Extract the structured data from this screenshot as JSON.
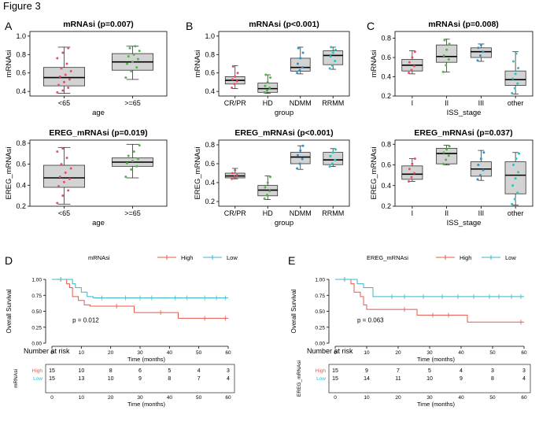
{
  "figure_title": "Figure 3",
  "colors": {
    "high": "#e8584b",
    "low": "#3bb6cc",
    "box_fill": "#d3d3d3",
    "g_a": "#e8506a",
    "g_b": "#53b34a",
    "g_c": "#2b90cf",
    "g_d": "#25c3c6"
  },
  "panels": {
    "A": "A",
    "B": "B",
    "C": "C",
    "D": "D",
    "E": "E"
  },
  "chart_data": [
    {
      "id": "A-top",
      "type": "box",
      "title": "mRNAsi (p=0.007)",
      "xlabel": "age",
      "ylabel": "mRNAsi",
      "ylim": [
        0.35,
        1.05
      ],
      "yticks": [
        "0.4",
        "0.6",
        "0.8",
        "1.0"
      ],
      "ytick_values": [
        0.4,
        0.6,
        0.8,
        1.0
      ],
      "categories": [
        "<65",
        ">=65"
      ],
      "point_colors": [
        "g_a",
        "g_b"
      ],
      "boxes": [
        {
          "min": 0.38,
          "q1": 0.46,
          "median": 0.55,
          "q3": 0.66,
          "max": 0.88,
          "points": [
            0.39,
            0.41,
            0.44,
            0.47,
            0.5,
            0.53,
            0.56,
            0.58,
            0.62,
            0.65,
            0.7,
            0.76,
            0.82,
            0.87
          ]
        },
        {
          "min": 0.53,
          "q1": 0.63,
          "median": 0.72,
          "q3": 0.81,
          "max": 0.89,
          "points": [
            0.55,
            0.62,
            0.66,
            0.7,
            0.72,
            0.75,
            0.78,
            0.8,
            0.84,
            0.87,
            0.89
          ]
        }
      ]
    },
    {
      "id": "B-top",
      "type": "box",
      "title": "mRNAsi (p<0.001)",
      "xlabel": "group",
      "ylabel": "mRNAsi",
      "ylim": [
        0.35,
        1.05
      ],
      "yticks": [
        "0.4",
        "0.6",
        "0.8",
        "1.0"
      ],
      "ytick_values": [
        0.4,
        0.6,
        0.8,
        1.0
      ],
      "categories": [
        "CR/PR",
        "HD",
        "NDMM",
        "RRMM"
      ],
      "point_colors": [
        "g_a",
        "g_b",
        "g_c",
        "g_d"
      ],
      "boxes": [
        {
          "min": 0.43,
          "q1": 0.48,
          "median": 0.52,
          "q3": 0.56,
          "max": 0.68,
          "points": [
            0.44,
            0.48,
            0.51,
            0.53,
            0.56,
            0.6,
            0.67
          ]
        },
        {
          "min": 0.38,
          "q1": 0.39,
          "median": 0.43,
          "q3": 0.49,
          "max": 0.58,
          "points": [
            0.39,
            0.41,
            0.44,
            0.46,
            0.5,
            0.55,
            0.58
          ]
        },
        {
          "min": 0.59,
          "q1": 0.62,
          "median": 0.66,
          "q3": 0.76,
          "max": 0.88,
          "points": [
            0.6,
            0.63,
            0.66,
            0.7,
            0.76,
            0.82,
            0.87
          ]
        },
        {
          "min": 0.64,
          "q1": 0.69,
          "median": 0.79,
          "q3": 0.84,
          "max": 0.88,
          "points": [
            0.65,
            0.68,
            0.73,
            0.78,
            0.82,
            0.85,
            0.88
          ]
        }
      ]
    },
    {
      "id": "C-top",
      "type": "box",
      "title": "mRNAsi (p=0.008)",
      "xlabel": "ISS_stage",
      "ylabel": "mRNAsi",
      "ylim": [
        0.2,
        0.87
      ],
      "yticks": [
        "0.2",
        "0.4",
        "0.6",
        "0.8"
      ],
      "ytick_values": [
        0.2,
        0.4,
        0.6,
        0.8
      ],
      "categories": [
        "I",
        "II",
        "III",
        "other"
      ],
      "point_colors": [
        "g_a",
        "g_b",
        "g_c",
        "g_d"
      ],
      "boxes": [
        {
          "min": 0.43,
          "q1": 0.46,
          "median": 0.52,
          "q3": 0.58,
          "max": 0.67,
          "points": [
            0.44,
            0.47,
            0.51,
            0.55,
            0.6,
            0.66
          ]
        },
        {
          "min": 0.45,
          "q1": 0.55,
          "median": 0.61,
          "q3": 0.73,
          "max": 0.79,
          "points": [
            0.45,
            0.52,
            0.58,
            0.62,
            0.68,
            0.74,
            0.78
          ]
        },
        {
          "min": 0.56,
          "q1": 0.6,
          "median": 0.66,
          "q3": 0.7,
          "max": 0.74,
          "points": [
            0.57,
            0.62,
            0.66,
            0.7,
            0.73
          ]
        },
        {
          "min": 0.22,
          "q1": 0.31,
          "median": 0.37,
          "q3": 0.46,
          "max": 0.66,
          "points": [
            0.23,
            0.28,
            0.33,
            0.38,
            0.43,
            0.49,
            0.56,
            0.64
          ]
        }
      ]
    },
    {
      "id": "A-bottom",
      "type": "box",
      "title": "EREG_mRNAsi (p=0.019)",
      "xlabel": "age",
      "ylabel": "EREG_mRNAsi",
      "ylim": [
        0.2,
        0.83
      ],
      "yticks": [
        "0.2",
        "0.4",
        "0.6",
        "0.8"
      ],
      "ytick_values": [
        0.2,
        0.4,
        0.6,
        0.8
      ],
      "categories": [
        "<65",
        ">=65"
      ],
      "point_colors": [
        "g_a",
        "g_b"
      ],
      "boxes": [
        {
          "min": 0.22,
          "q1": 0.38,
          "median": 0.47,
          "q3": 0.59,
          "max": 0.76,
          "points": [
            0.23,
            0.3,
            0.35,
            0.39,
            0.43,
            0.46,
            0.48,
            0.52,
            0.56,
            0.6,
            0.66,
            0.72,
            0.75
          ]
        },
        {
          "min": 0.47,
          "q1": 0.58,
          "median": 0.62,
          "q3": 0.66,
          "max": 0.79,
          "points": [
            0.48,
            0.55,
            0.58,
            0.61,
            0.63,
            0.65,
            0.68,
            0.72,
            0.78
          ]
        }
      ]
    },
    {
      "id": "B-bottom",
      "type": "box",
      "title": "EREG_mRNAsi (p<0.001)",
      "xlabel": "group",
      "ylabel": "EREG_mRNAsi",
      "ylim": [
        0.15,
        0.85
      ],
      "yticks": [
        "0.2",
        "0.4",
        "0.6",
        "0.8"
      ],
      "ytick_values": [
        0.2,
        0.4,
        0.6,
        0.8
      ],
      "categories": [
        "CR/PR",
        "HD",
        "NDMM",
        "RRMM"
      ],
      "point_colors": [
        "g_a",
        "g_b",
        "g_c",
        "g_d"
      ],
      "boxes": [
        {
          "min": 0.44,
          "q1": 0.45,
          "median": 0.47,
          "q3": 0.5,
          "max": 0.55,
          "points": [
            0.44,
            0.46,
            0.48,
            0.5,
            0.53
          ]
        },
        {
          "min": 0.22,
          "q1": 0.26,
          "median": 0.32,
          "q3": 0.37,
          "max": 0.47,
          "points": [
            0.23,
            0.27,
            0.31,
            0.35,
            0.4,
            0.46
          ]
        },
        {
          "min": 0.54,
          "q1": 0.6,
          "median": 0.67,
          "q3": 0.72,
          "max": 0.79,
          "points": [
            0.55,
            0.6,
            0.65,
            0.69,
            0.74,
            0.79
          ]
        },
        {
          "min": 0.57,
          "q1": 0.59,
          "median": 0.64,
          "q3": 0.72,
          "max": 0.76,
          "points": [
            0.57,
            0.6,
            0.64,
            0.68,
            0.72,
            0.75
          ]
        }
      ]
    },
    {
      "id": "C-bottom",
      "type": "box",
      "title": "EREG_mRNAsi (p=0.037)",
      "xlabel": "ISS_stage",
      "ylabel": "EREG_mRNAsi",
      "ylim": [
        0.2,
        0.84
      ],
      "yticks": [
        "0.2",
        "0.4",
        "0.6",
        "0.8"
      ],
      "ytick_values": [
        0.2,
        0.4,
        0.6,
        0.8
      ],
      "categories": [
        "I",
        "II",
        "III",
        "other"
      ],
      "point_colors": [
        "g_a",
        "g_b",
        "g_c",
        "g_d"
      ],
      "boxes": [
        {
          "min": 0.44,
          "q1": 0.46,
          "median": 0.51,
          "q3": 0.59,
          "max": 0.66,
          "points": [
            0.44,
            0.48,
            0.52,
            0.56,
            0.61,
            0.66
          ]
        },
        {
          "min": 0.6,
          "q1": 0.61,
          "median": 0.71,
          "q3": 0.76,
          "max": 0.79,
          "points": [
            0.61,
            0.65,
            0.69,
            0.72,
            0.75,
            0.78
          ]
        },
        {
          "min": 0.45,
          "q1": 0.49,
          "median": 0.56,
          "q3": 0.63,
          "max": 0.74,
          "points": [
            0.46,
            0.5,
            0.55,
            0.6,
            0.66,
            0.72
          ]
        },
        {
          "min": 0.21,
          "q1": 0.32,
          "median": 0.5,
          "q3": 0.63,
          "max": 0.72,
          "points": [
            0.22,
            0.27,
            0.33,
            0.4,
            0.47,
            0.53,
            0.6,
            0.66,
            0.71
          ]
        }
      ]
    },
    {
      "id": "D-km",
      "type": "line",
      "subtype": "kaplan-meier",
      "legend_title": "mRNAsi",
      "ylabel": "Overall Survival",
      "xlabel": "Time (months)",
      "xlim": [
        0,
        60
      ],
      "ylim": [
        0,
        1
      ],
      "xticks": [
        "0",
        "10",
        "20",
        "30",
        "40",
        "50",
        "60"
      ],
      "xtick_values": [
        0,
        10,
        20,
        30,
        40,
        50,
        60
      ],
      "yticks": [
        "0.00",
        "0.25",
        "0.50",
        "0.75",
        "1.00"
      ],
      "ytick_values": [
        0,
        0.25,
        0.5,
        0.75,
        1.0
      ],
      "pvalue": "p = 0.012",
      "series": [
        {
          "name": "High",
          "color": "high",
          "steps": [
            [
              0,
              1.0
            ],
            [
              5,
              0.93
            ],
            [
              6,
              0.87
            ],
            [
              7,
              0.73
            ],
            [
              9,
              0.67
            ],
            [
              11,
              0.6
            ],
            [
              13,
              0.58
            ],
            [
              28,
              0.48
            ],
            [
              43,
              0.39
            ],
            [
              60,
              0.39
            ]
          ],
          "censors": [
            [
              3,
              1.0
            ],
            [
              22,
              0.58
            ],
            [
              37,
              0.48
            ],
            [
              52,
              0.39
            ],
            [
              59,
              0.39
            ]
          ]
        },
        {
          "name": "Low",
          "color": "low",
          "steps": [
            [
              0,
              1.0
            ],
            [
              7,
              0.93
            ],
            [
              8,
              0.87
            ],
            [
              10,
              0.8
            ],
            [
              12,
              0.73
            ],
            [
              14,
              0.71
            ],
            [
              60,
              0.71
            ]
          ],
          "censors": [
            [
              3,
              1.0
            ],
            [
              17,
              0.71
            ],
            [
              25,
              0.71
            ],
            [
              30,
              0.71
            ],
            [
              34,
              0.71
            ],
            [
              42,
              0.71
            ],
            [
              46,
              0.71
            ],
            [
              52,
              0.71
            ],
            [
              56,
              0.71
            ],
            [
              59,
              0.71
            ]
          ]
        }
      ],
      "risk_table": {
        "title": "Number at risk",
        "ylabel": "mRNAsi",
        "xlabel": "Time (months)",
        "times": [
          "0",
          "10",
          "20",
          "30",
          "40",
          "50",
          "60"
        ],
        "rows": [
          {
            "label": "High",
            "values": [
              "15",
              "10",
              "8",
              "6",
              "5",
              "4",
              "3"
            ]
          },
          {
            "label": "Low",
            "values": [
              "15",
              "13",
              "10",
              "9",
              "8",
              "7",
              "4"
            ]
          }
        ]
      }
    },
    {
      "id": "E-km",
      "type": "line",
      "subtype": "kaplan-meier",
      "legend_title": "EREG_mRNAsi",
      "ylabel": "Overall Survival",
      "xlabel": "Time (months)",
      "xlim": [
        0,
        60
      ],
      "ylim": [
        0,
        1
      ],
      "xticks": [
        "0",
        "10",
        "20",
        "30",
        "40",
        "50",
        "60"
      ],
      "xtick_values": [
        0,
        10,
        20,
        30,
        40,
        50,
        60
      ],
      "yticks": [
        "0.00",
        "0.25",
        "0.50",
        "0.75",
        "1.00"
      ],
      "ytick_values": [
        0,
        0.25,
        0.5,
        0.75,
        1.0
      ],
      "pvalue": "p = 0.063",
      "series": [
        {
          "name": "High",
          "color": "high",
          "steps": [
            [
              0,
              1.0
            ],
            [
              5,
              0.93
            ],
            [
              6,
              0.8
            ],
            [
              8,
              0.73
            ],
            [
              9,
              0.6
            ],
            [
              10,
              0.53
            ],
            [
              25,
              0.53
            ],
            [
              26,
              0.44
            ],
            [
              42,
              0.33
            ],
            [
              60,
              0.33
            ]
          ],
          "censors": [
            [
              3,
              1.0
            ],
            [
              22,
              0.53
            ],
            [
              31,
              0.44
            ],
            [
              36,
              0.44
            ],
            [
              59,
              0.33
            ]
          ]
        },
        {
          "name": "Low",
          "color": "low",
          "steps": [
            [
              0,
              1.0
            ],
            [
              7,
              0.93
            ],
            [
              9,
              0.87
            ],
            [
              12,
              0.73
            ],
            [
              60,
              0.73
            ]
          ],
          "censors": [
            [
              3,
              1.0
            ],
            [
              18,
              0.73
            ],
            [
              22,
              0.73
            ],
            [
              28,
              0.73
            ],
            [
              34,
              0.73
            ],
            [
              39,
              0.73
            ],
            [
              44,
              0.73
            ],
            [
              49,
              0.73
            ],
            [
              52,
              0.73
            ],
            [
              56,
              0.73
            ],
            [
              59,
              0.73
            ]
          ]
        }
      ],
      "risk_table": {
        "title": "Number at risk",
        "ylabel": "EREG_mRNAsi",
        "xlabel": "Time (months)",
        "times": [
          "0",
          "10",
          "20",
          "30",
          "40",
          "50",
          "60"
        ],
        "rows": [
          {
            "label": "High",
            "values": [
              "15",
              "9",
              "7",
              "5",
              "4",
              "3",
              "3"
            ]
          },
          {
            "label": "Low",
            "values": [
              "15",
              "14",
              "11",
              "10",
              "9",
              "8",
              "4"
            ]
          }
        ]
      }
    }
  ]
}
